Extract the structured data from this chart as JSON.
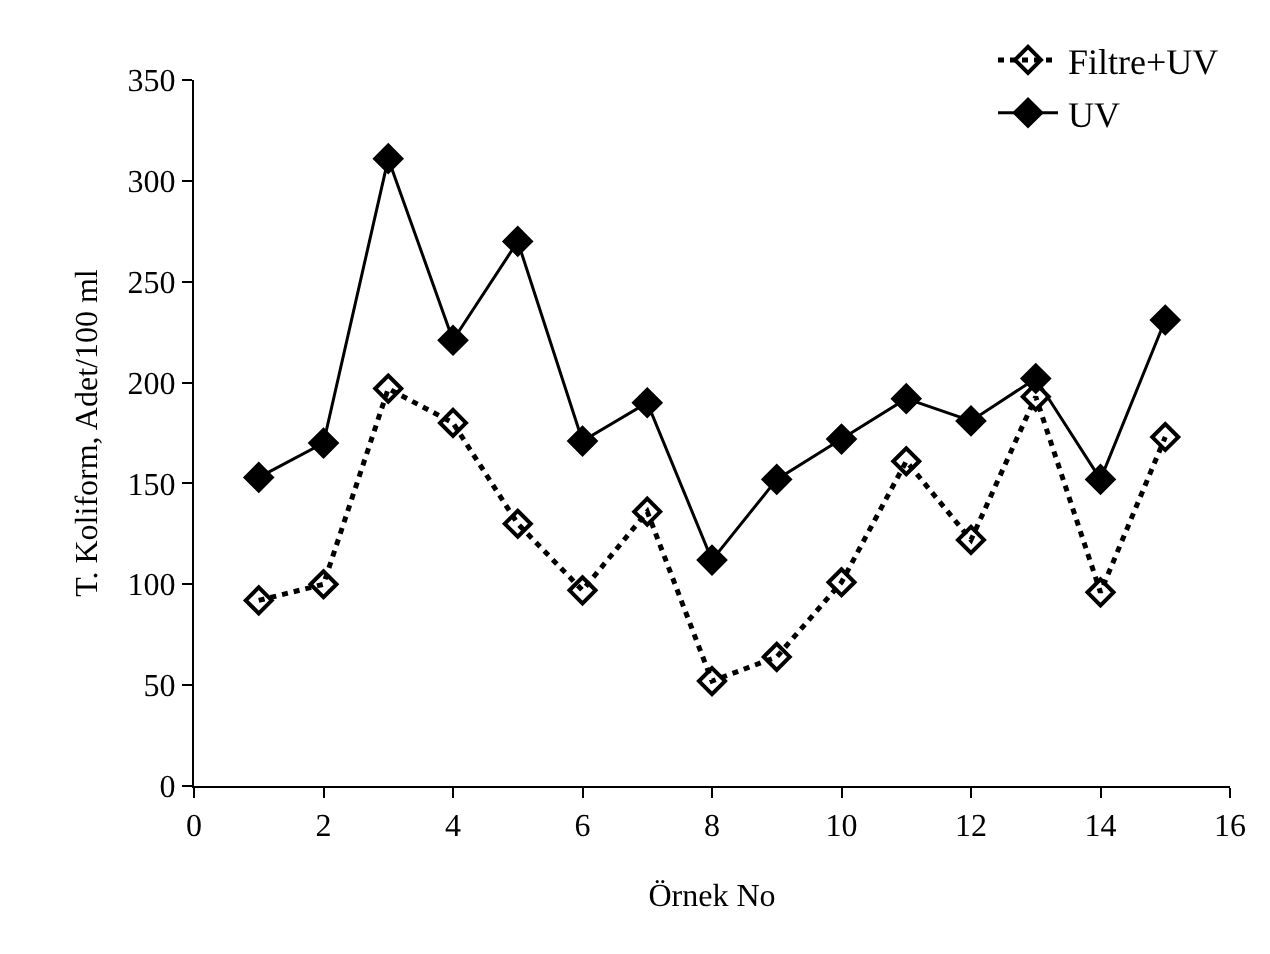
{
  "chart_data": {
    "type": "line",
    "xlabel": "Örnek No",
    "ylabel": "T. Koliform, Adet/100 ml",
    "x": [
      1,
      2,
      3,
      4,
      5,
      6,
      7,
      8,
      9,
      10,
      11,
      12,
      13,
      14,
      15
    ],
    "series": [
      {
        "name": "Filtre+UV",
        "color": "#000000",
        "line_style": "dotted",
        "marker": "diamond",
        "values": [
          92,
          100,
          197,
          180,
          130,
          97,
          136,
          52,
          64,
          101,
          161,
          122,
          193,
          96,
          173
        ]
      },
      {
        "name": "UV",
        "color": "#000000",
        "line_style": "solid",
        "marker": "diamond",
        "values": [
          153,
          170,
          311,
          221,
          270,
          171,
          190,
          112,
          152,
          172,
          192,
          181,
          202,
          152,
          231
        ]
      }
    ],
    "xlim": [
      0,
      16
    ],
    "xticks": [
      0,
      2,
      4,
      6,
      8,
      10,
      12,
      14,
      16
    ],
    "ylim": [
      0,
      350
    ],
    "yticks": [
      0,
      50,
      100,
      150,
      200,
      250,
      300,
      350
    ],
    "legend": "top right"
  }
}
